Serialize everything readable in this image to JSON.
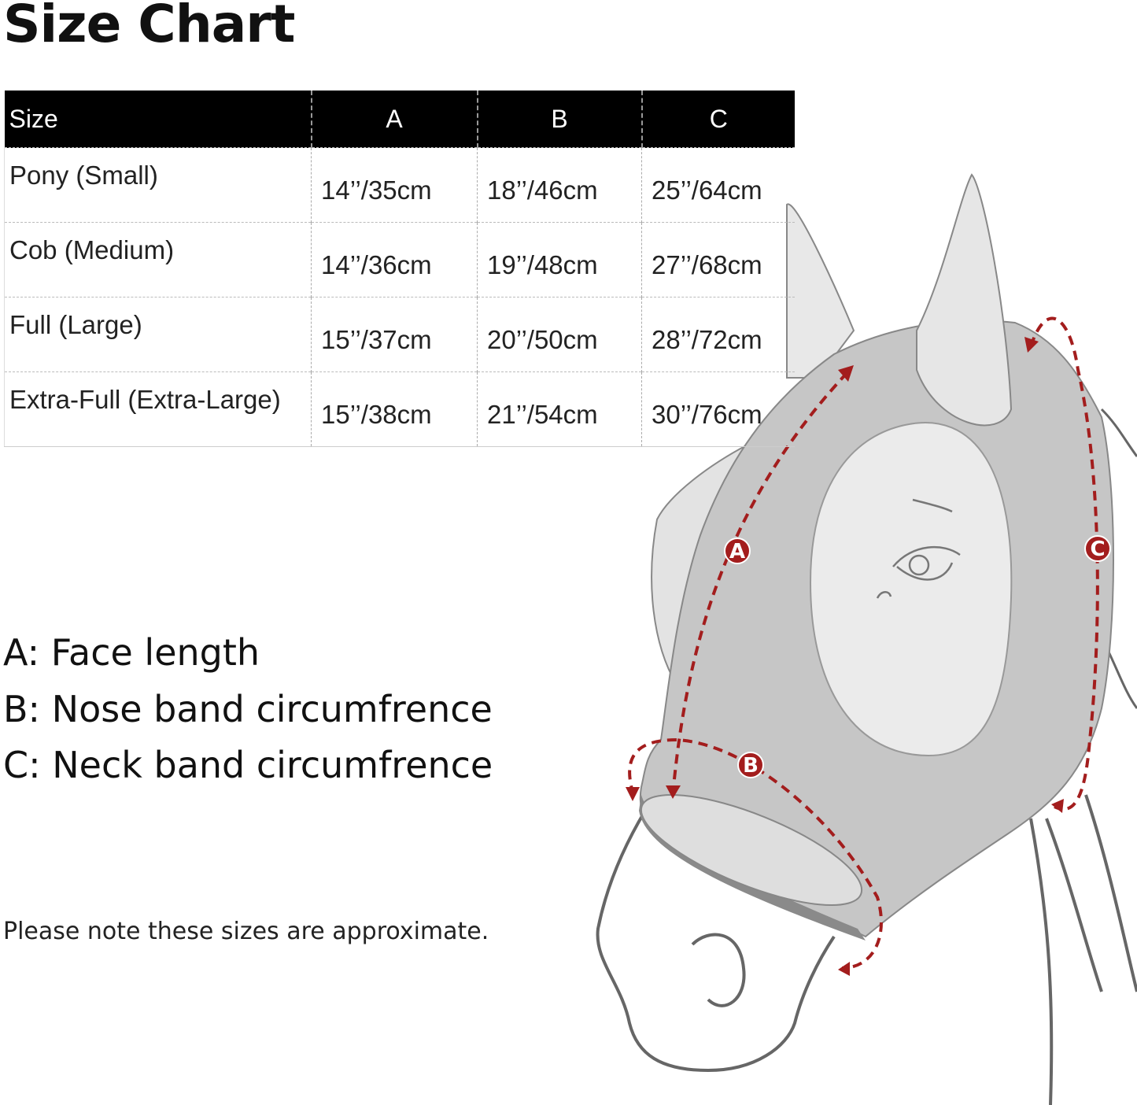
{
  "title": "Size Chart",
  "table": {
    "headers": [
      "Size",
      "A",
      "B",
      "C"
    ],
    "rows": [
      [
        "Pony (Small)",
        "14’’/35cm",
        "18’’/46cm",
        "25’’/64cm"
      ],
      [
        "Cob (Medium)",
        "14’’/36cm",
        "19’’/48cm",
        "27’’/68cm"
      ],
      [
        "Full (Large)",
        "15’’/37cm",
        "20’’/50cm",
        "28’’/72cm"
      ],
      [
        "Extra-Full (Extra-Large)",
        "15’’/38cm",
        "21’’/54cm",
        "30’’/76cm"
      ]
    ]
  },
  "legend": [
    "A: Face length",
    "B: Nose band circumfrence",
    "C: Neck band circumfrence"
  ],
  "note": "Please note these sizes are approximate.",
  "diagram": {
    "markers": [
      "A",
      "B",
      "C"
    ],
    "colors": {
      "measure": "#a31d1d",
      "mask": "#c6c6c6",
      "outline": "#666666"
    }
  }
}
